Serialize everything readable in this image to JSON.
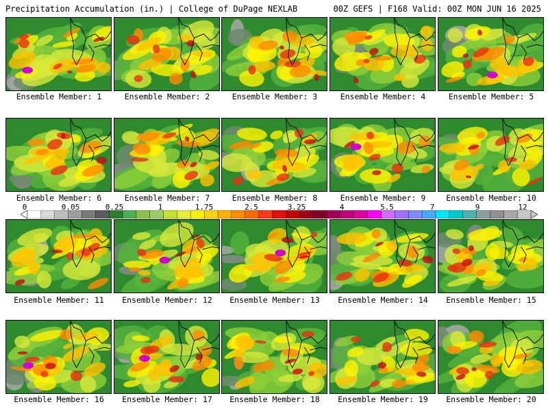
{
  "header": {
    "left": "Precipitation Accumulation (in.) | College of DuPage NEXLAB",
    "right": "00Z GEFS | F168 Valid: 00Z MON JUN 16 2025"
  },
  "colorbar": {
    "ticks": [
      "0",
      "0.05",
      "0.25",
      "1",
      "1.75",
      "2.5",
      "3.25",
      "4",
      "5.5",
      "7",
      "9",
      "12"
    ],
    "colors": [
      "#ffffff",
      "#d9d9d9",
      "#bdbdbd",
      "#9e9e9e",
      "#7a7a7a",
      "#5a5a5a",
      "#2e7d32",
      "#4caf50",
      "#8bc34a",
      "#9ccc65",
      "#c6e02d",
      "#e6ee3a",
      "#fff200",
      "#ffd400",
      "#ffb000",
      "#ff8c00",
      "#ff6a00",
      "#ff3a1a",
      "#e01010",
      "#c00000",
      "#9b0015",
      "#80002a",
      "#a0005a",
      "#c0007a",
      "#e000a0",
      "#ff00ff",
      "#d26bff",
      "#a070ff",
      "#7f8cff",
      "#4aa8ff",
      "#00e5ff",
      "#00c8c8",
      "#4fb0b0",
      "#8aa0a0",
      "#909090",
      "#a8a8a8",
      "#c8c8c8"
    ]
  },
  "members": [
    {
      "label": "Ensemble Member: 1"
    },
    {
      "label": "Ensemble Member: 2"
    },
    {
      "label": "Ensemble Member: 3"
    },
    {
      "label": "Ensemble Member: 4"
    },
    {
      "label": "Ensemble Member: 5"
    },
    {
      "label": "Ensemble Member: 6"
    },
    {
      "label": "Ensemble Member: 7"
    },
    {
      "label": "Ensemble Member: 8"
    },
    {
      "label": "Ensemble Member: 9"
    },
    {
      "label": "Ensemble Member: 10"
    },
    {
      "label": "Ensemble Member: 11"
    },
    {
      "label": "Ensemble Member: 12"
    },
    {
      "label": "Ensemble Member: 13"
    },
    {
      "label": "Ensemble Member: 14"
    },
    {
      "label": "Ensemble Member: 15"
    },
    {
      "label": "Ensemble Member: 16"
    },
    {
      "label": "Ensemble Member: 17"
    },
    {
      "label": "Ensemble Member: 18"
    },
    {
      "label": "Ensemble Member: 19"
    },
    {
      "label": "Ensemble Member: 20"
    }
  ]
}
